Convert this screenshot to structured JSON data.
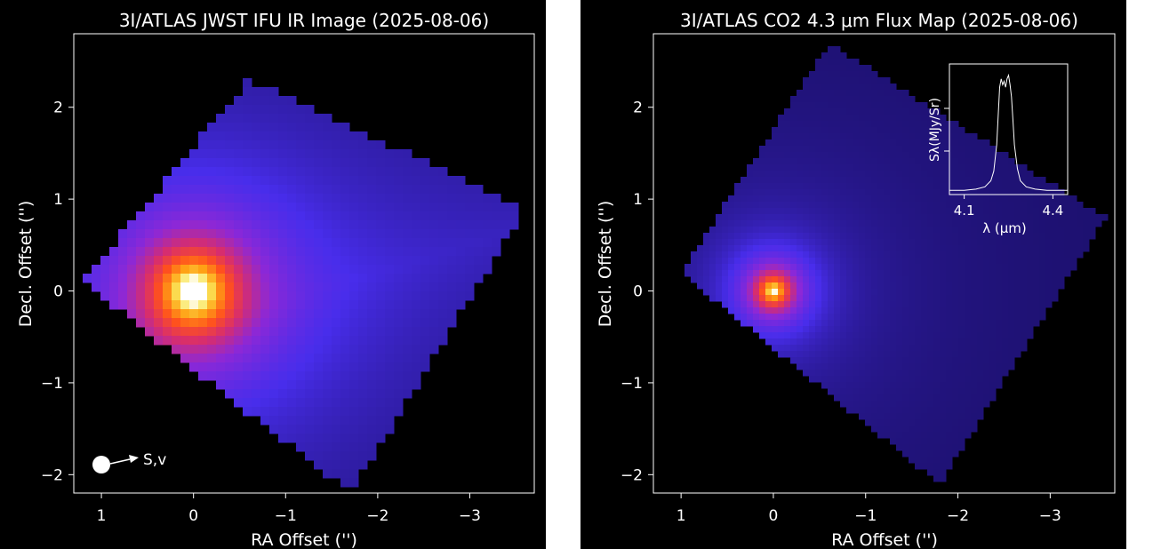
{
  "chart_data": [
    {
      "type": "heatmap",
      "title": "3I/ATLAS JWST IFU IR Image (2025-08-06)",
      "xlabel": "RA Offset ('')",
      "ylabel": "Decl. Offset ('')",
      "xlim": [
        1.3,
        -3.7
      ],
      "ylim": [
        -2.2,
        2.8
      ],
      "x_ticks": [
        {
          "value": 1,
          "label": "1"
        },
        {
          "value": 0,
          "label": "0"
        },
        {
          "value": -1,
          "label": "−1"
        },
        {
          "value": -2,
          "label": "−2"
        },
        {
          "value": -3,
          "label": "−3"
        }
      ],
      "y_ticks": [
        {
          "value": 2,
          "label": "2"
        },
        {
          "value": 1,
          "label": "1"
        },
        {
          "value": 0,
          "label": "0"
        },
        {
          "value": -1,
          "label": "−1"
        },
        {
          "value": -2,
          "label": "−2"
        }
      ],
      "colormap": "gnuplot2",
      "nucleus": [
        0,
        0
      ],
      "peak_brightness": 1.0,
      "coma_brightness": 0.5,
      "tail_direction_deg": 0,
      "footprint_corners": [
        [
          1.2,
          0.1
        ],
        [
          -0.6,
          2.3
        ],
        [
          -3.6,
          0.9
        ],
        [
          -1.7,
          -2.2
        ]
      ],
      "direction_marker": {
        "position": [
          1,
          -1.9
        ],
        "label": "S,v",
        "color": "#ffffff"
      }
    },
    {
      "type": "heatmap",
      "title": "3I/ATLAS CO2 4.3 μm Flux Map (2025-08-06)",
      "xlabel": "RA Offset ('')",
      "ylabel": "Decl. Offset ('')",
      "xlim": [
        1.3,
        -3.7
      ],
      "ylim": [
        -2.2,
        2.8
      ],
      "x_ticks": [
        {
          "value": 1,
          "label": "1"
        },
        {
          "value": 0,
          "label": "0"
        },
        {
          "value": -1,
          "label": "−1"
        },
        {
          "value": -2,
          "label": "−2"
        },
        {
          "value": -3,
          "label": "−3"
        }
      ],
      "y_ticks": [
        {
          "value": 2,
          "label": "2"
        },
        {
          "value": 1,
          "label": "1"
        },
        {
          "value": 0,
          "label": "0"
        },
        {
          "value": -1,
          "label": "−1"
        },
        {
          "value": -2,
          "label": "−2"
        }
      ],
      "colormap": "gnuplot2",
      "nucleus": [
        0,
        0
      ],
      "peak_brightness": 0.92,
      "coma_brightness": 0.33,
      "footprint_corners": [
        [
          1.0,
          0.2
        ],
        [
          -0.6,
          2.7
        ],
        [
          -3.6,
          0.8
        ],
        [
          -1.8,
          -2.1
        ]
      ],
      "inset": {
        "type": "line",
        "xlabel": "λ (μm)",
        "ylabel": "Sλ(MJy/Sr)",
        "xlim": [
          4.05,
          4.45
        ],
        "x_ticks": [
          {
            "value": 4.1,
            "label": "4.1"
          },
          {
            "value": 4.4,
            "label": "4.4"
          }
        ],
        "x": [
          4.05,
          4.1,
          4.14,
          4.17,
          4.19,
          4.2,
          4.21,
          4.215,
          4.22,
          4.225,
          4.23,
          4.235,
          4.24,
          4.245,
          4.25,
          4.255,
          4.26,
          4.265,
          4.27,
          4.28,
          4.29,
          4.31,
          4.34,
          4.38,
          4.45
        ],
        "y": [
          0.02,
          0.02,
          0.03,
          0.05,
          0.1,
          0.18,
          0.4,
          0.65,
          0.88,
          0.95,
          0.9,
          0.93,
          0.88,
          0.95,
          0.98,
          0.9,
          0.8,
          0.6,
          0.4,
          0.2,
          0.1,
          0.05,
          0.03,
          0.02,
          0.02
        ]
      }
    }
  ]
}
